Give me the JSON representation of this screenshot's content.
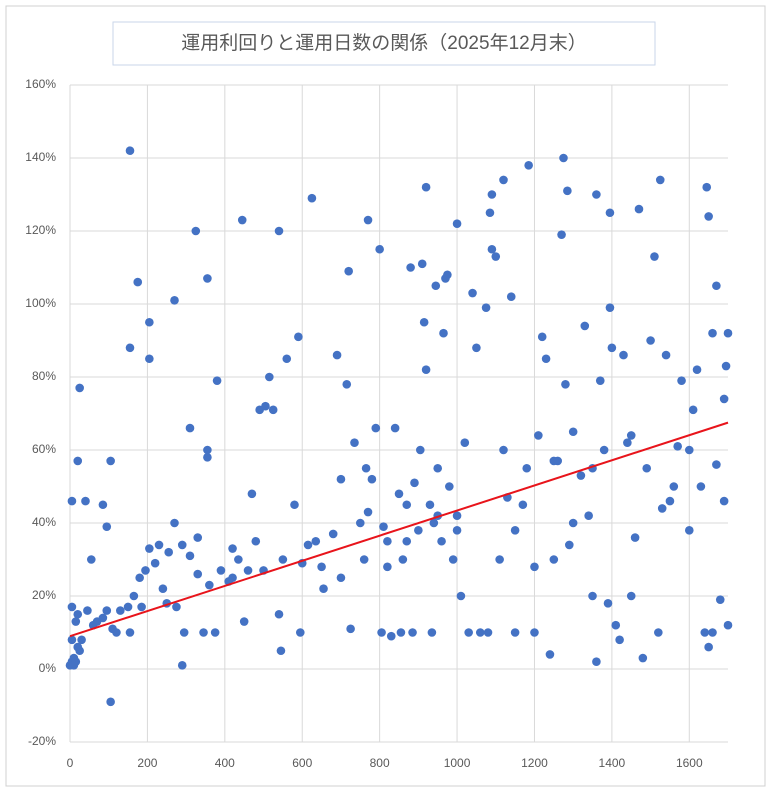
{
  "chart_data": {
    "type": "scatter",
    "title": "運用利回りと運用日数の関係（2025年12月末）",
    "color": "#4472c4",
    "grid": true,
    "xlim": [
      0,
      1700
    ],
    "xticks": [
      0,
      200,
      400,
      600,
      800,
      1000,
      1200,
      1400,
      1600
    ],
    "ylim": [
      -20,
      160
    ],
    "yticks": [
      {
        "value": -20,
        "label": "-20%"
      },
      {
        "value": 0,
        "label": "0%"
      },
      {
        "value": 20,
        "label": "20%"
      },
      {
        "value": 40,
        "label": "40%"
      },
      {
        "value": 60,
        "label": "60%"
      },
      {
        "value": 80,
        "label": "80%"
      },
      {
        "value": 100,
        "label": "100%"
      },
      {
        "value": 120,
        "label": "120%"
      },
      {
        "value": 140,
        "label": "140%"
      },
      {
        "value": 160,
        "label": "160%"
      }
    ],
    "x": [
      155,
      325,
      445,
      540,
      625,
      770,
      920,
      1000,
      1090,
      1120,
      1185,
      1275,
      1285,
      1360,
      1395,
      1470,
      1525,
      1645,
      1650,
      1670,
      1395,
      175,
      270,
      355,
      205,
      155,
      205,
      310,
      380,
      355,
      355,
      25,
      20,
      105,
      5,
      40,
      85,
      95,
      290,
      105,
      0,
      5,
      10,
      15,
      10,
      20,
      25,
      30,
      5,
      15,
      20,
      5,
      45,
      55,
      60,
      70,
      85,
      95,
      110,
      120,
      130,
      150,
      155,
      165,
      180,
      185,
      195,
      205,
      220,
      230,
      240,
      255,
      270,
      275,
      290,
      295,
      310,
      330,
      345,
      360,
      375,
      390,
      410,
      420,
      435,
      450,
      460,
      470,
      490,
      505,
      515,
      525,
      540,
      545,
      560,
      580,
      590,
      595,
      600,
      615,
      635,
      655,
      680,
      690,
      700,
      715,
      720,
      725,
      735,
      750,
      765,
      770,
      780,
      790,
      800,
      805,
      810,
      820,
      830,
      840,
      850,
      855,
      860,
      870,
      880,
      885,
      890,
      900,
      905,
      910,
      915,
      920,
      930,
      935,
      940,
      945,
      950,
      960,
      965,
      970,
      975,
      980,
      990,
      1000,
      1010,
      1020,
      1030,
      1040,
      1050,
      1060,
      1075,
      1080,
      1085,
      1090,
      1100,
      1110,
      1120,
      1130,
      1140,
      1150,
      1170,
      1180,
      1200,
      1210,
      1220,
      1230,
      1240,
      1250,
      1260,
      1270,
      1280,
      1290,
      1300,
      1320,
      1330,
      1340,
      1350,
      1360,
      1370,
      1380,
      1390,
      1400,
      1410,
      1420,
      1430,
      1440,
      1450,
      1460,
      1480,
      1490,
      1500,
      1510,
      1520,
      1530,
      1540,
      1560,
      1570,
      1580,
      1600,
      1610,
      1620,
      1630,
      1640,
      1650,
      1660,
      1670,
      1680,
      1690,
      1700,
      1700,
      1695,
      1690,
      1660,
      1200,
      1150,
      1000,
      950,
      870,
      820,
      760,
      700,
      650,
      550,
      500,
      480,
      420,
      330,
      250,
      1250,
      1300,
      1350,
      1450,
      1550,
      1600
    ],
    "values": [
      142,
      120,
      123,
      120,
      129,
      123,
      132,
      122,
      130,
      134,
      138,
      140,
      131,
      130,
      125,
      126,
      134,
      132,
      124,
      105,
      99,
      106,
      101,
      107,
      95,
      88,
      85,
      66,
      79,
      60,
      58,
      77,
      57,
      57,
      46,
      46,
      45,
      39,
      1,
      -9,
      1,
      2,
      3,
      2,
      1,
      6,
      5,
      8,
      8,
      13,
      15,
      17,
      16,
      30,
      12,
      13,
      14,
      16,
      11,
      10,
      16,
      17,
      10,
      20,
      25,
      17,
      27,
      33,
      29,
      34,
      22,
      32,
      40,
      17,
      34,
      10,
      31,
      36,
      10,
      23,
      10,
      27,
      24,
      33,
      30,
      13,
      27,
      48,
      71,
      72,
      80,
      71,
      15,
      5,
      85,
      45,
      91,
      10,
      29,
      34,
      35,
      22,
      37,
      86,
      52,
      78,
      109,
      11,
      62,
      40,
      55,
      43,
      52,
      66,
      115,
      10,
      39,
      35,
      9,
      66,
      48,
      10,
      30,
      45,
      110,
      10,
      51,
      38,
      60,
      111,
      95,
      82,
      45,
      10,
      40,
      105,
      55,
      35,
      92,
      107,
      108,
      50,
      30,
      42,
      20,
      62,
      10,
      103,
      88,
      10,
      99,
      10,
      125,
      115,
      113,
      30,
      60,
      47,
      102,
      10,
      45,
      55,
      28,
      64,
      91,
      85,
      4,
      30,
      57,
      119,
      78,
      34,
      65,
      53,
      94,
      42,
      20,
      2,
      79,
      60,
      18,
      88,
      12,
      8,
      86,
      62,
      20,
      36,
      3,
      55,
      90,
      113,
      10,
      44,
      86,
      50,
      61,
      79,
      38,
      71,
      82,
      50,
      10,
      6,
      92,
      56,
      19,
      74,
      92,
      12,
      83,
      46,
      10,
      10,
      38,
      38,
      42,
      35,
      28,
      30,
      25,
      28,
      30,
      27,
      35,
      25,
      26,
      18,
      57,
      40,
      55,
      64,
      46,
      60
    ],
    "trendline": {
      "x": [
        0,
        1700
      ],
      "values": [
        9,
        67.5
      ],
      "color": "#e8141b"
    }
  }
}
